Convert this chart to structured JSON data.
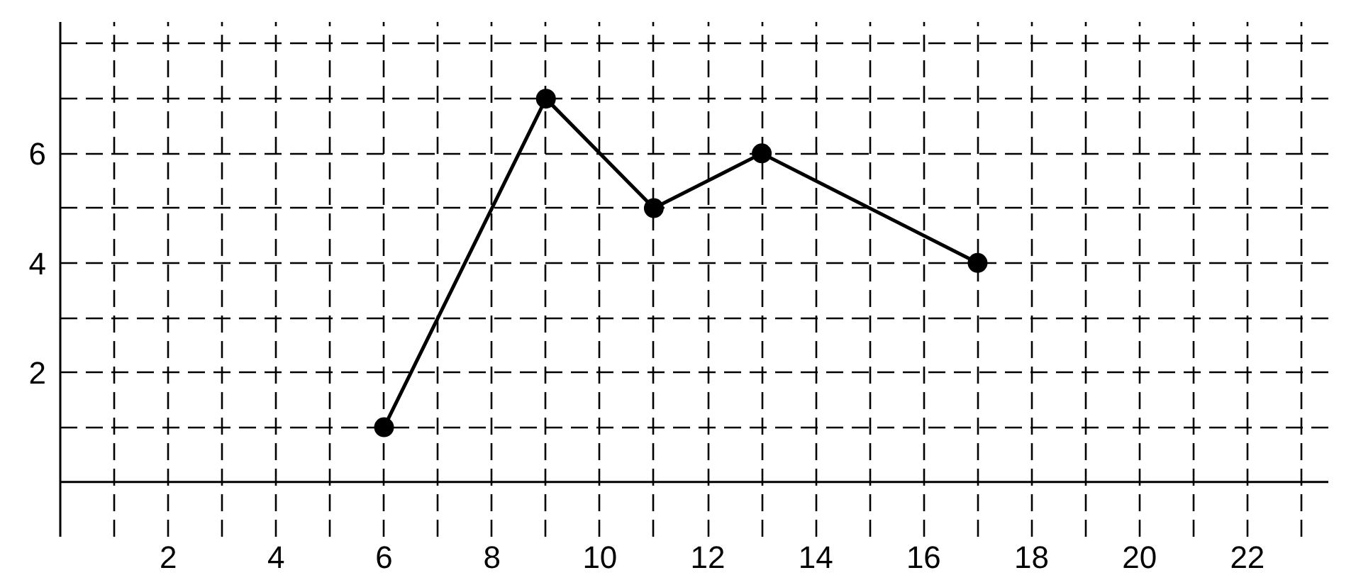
{
  "chart_data": {
    "type": "line",
    "x": [
      6,
      9,
      11,
      13,
      17
    ],
    "series": [
      {
        "color": "#000000",
        "values": [
          1,
          7,
          5,
          6,
          4
        ]
      }
    ],
    "marker": "circle",
    "line_style": "solid",
    "grid": true,
    "xlim": [
      0,
      23.5
    ],
    "ylim": [
      -1,
      8.4
    ],
    "xticks": [
      {
        "value": 1,
        "label": null
      },
      2,
      {
        "value": 3,
        "label": null
      },
      4,
      {
        "value": 5,
        "label": null
      },
      6,
      {
        "value": 7,
        "label": null
      },
      8,
      {
        "value": 9,
        "label": null
      },
      10,
      {
        "value": 11,
        "label": null
      },
      12,
      {
        "value": 13,
        "label": null
      },
      14,
      {
        "value": 15,
        "label": null
      },
      16,
      {
        "value": 17,
        "label": null
      },
      18,
      {
        "value": 19,
        "label": null
      },
      20,
      {
        "value": 21,
        "label": null
      },
      22,
      {
        "value": 23,
        "label": null
      }
    ],
    "yticks": [
      {
        "value": 1,
        "label": null
      },
      2,
      {
        "value": 3,
        "label": null
      },
      4,
      {
        "value": 5,
        "label": null
      },
      6,
      {
        "value": 7,
        "label": null
      },
      {
        "value": 8,
        "label": null
      }
    ]
  }
}
